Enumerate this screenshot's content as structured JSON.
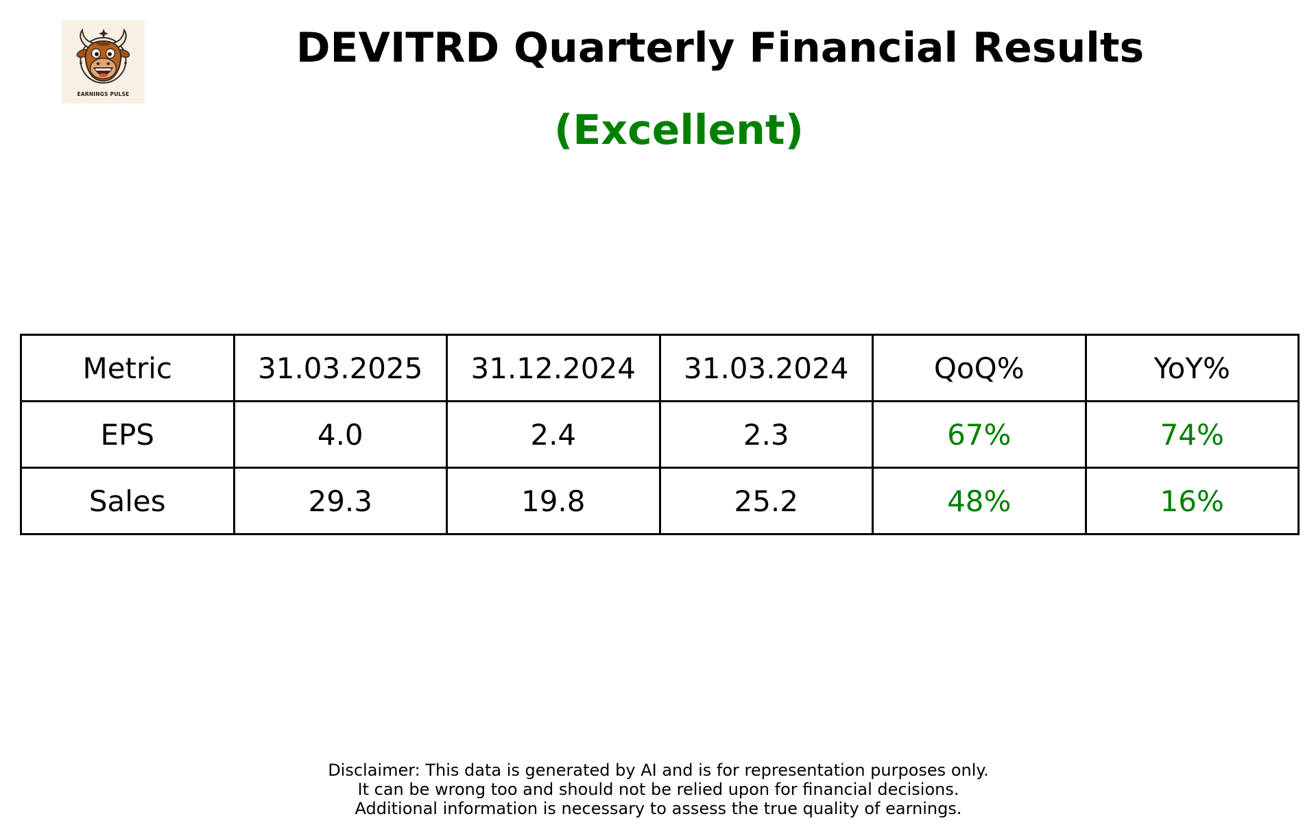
{
  "title": "DEVITRD Quarterly Financial Results",
  "rating": "(Excellent)",
  "logo_text": "EARNINGS PULSE",
  "colors": {
    "positive": "#008000",
    "logo_background": "#f7f0e3"
  },
  "chart_data": {
    "type": "table",
    "columns": [
      "Metric",
      "31.03.2025",
      "31.12.2024",
      "31.03.2024",
      "QoQ%",
      "YoY%"
    ],
    "rows": [
      [
        "EPS",
        "4.0",
        "2.4",
        "2.3",
        "67%",
        "74%"
      ],
      [
        "Sales",
        "29.3",
        "19.8",
        "25.2",
        "48%",
        "16%"
      ]
    ]
  },
  "disclaimer": [
    "Disclaimer: This data is generated by AI and is for representation purposes only.",
    "It can be wrong too and should not be relied upon for financial decisions.",
    "Additional information is necessary to assess the true quality of earnings."
  ]
}
